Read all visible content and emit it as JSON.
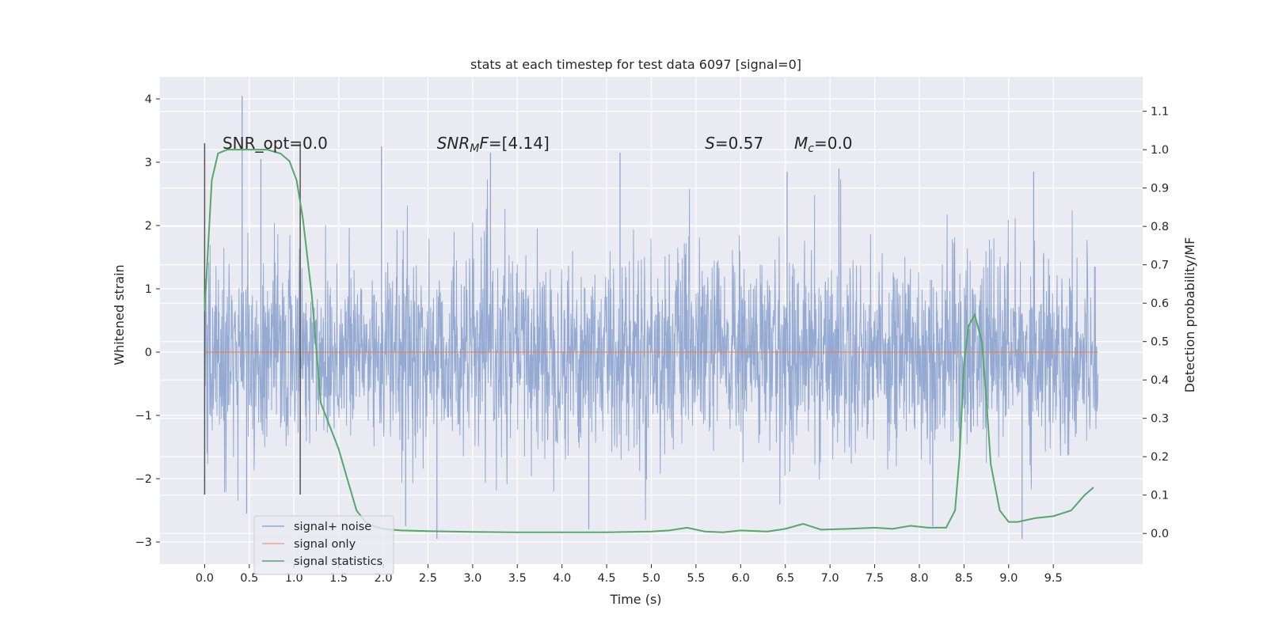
{
  "chart_data": {
    "type": "line",
    "title": "stats at each timestep for test data 6097 [signal=0]",
    "xlabel": "Time (s)",
    "ylabel": "Whitened strain",
    "y2label": "Detection probability/MF",
    "xlim": [
      -0.5,
      10.5
    ],
    "ylim": [
      -3.35,
      4.35
    ],
    "y2lim": [
      -0.08,
      1.19
    ],
    "x_ticks": [
      "0.0",
      "0.5",
      "1.0",
      "1.5",
      "2.0",
      "2.5",
      "3.0",
      "3.5",
      "4.0",
      "4.5",
      "5.0",
      "5.5",
      "6.0",
      "6.5",
      "7.0",
      "7.5",
      "8.0",
      "8.5",
      "9.0",
      "9.5"
    ],
    "y_ticks": [
      "4",
      "3",
      "2",
      "1",
      "0",
      "−1",
      "−2",
      "−3"
    ],
    "y2_ticks": [
      "1.1",
      "1.0",
      "0.9",
      "0.8",
      "0.7",
      "0.6",
      "0.5",
      "0.4",
      "0.3",
      "0.2",
      "0.1",
      "0.0"
    ],
    "grid": true,
    "annotations": [
      {
        "text": "SNR_opt=0.0",
        "x": 0.2,
        "y": 3.3
      },
      {
        "text": "SNR_MF=[4.14]",
        "x": 2.6,
        "y": 3.3
      },
      {
        "text": "S=0.57",
        "x": 5.6,
        "y": 3.3
      },
      {
        "text": "M_c=0.0",
        "x": 6.6,
        "y": 3.3
      }
    ],
    "vlines": [
      {
        "x": 0.0,
        "ymin": -2.25,
        "ymax": 3.3
      },
      {
        "x": 1.07,
        "ymin": -2.25,
        "ymax": 3.3
      }
    ],
    "series": [
      {
        "name": "signal+ noise",
        "axis": "left",
        "color": "#8fa6d0",
        "kind": "noise",
        "t_range": [
          0.0,
          10.0
        ],
        "band_typical": [
          -1.4,
          1.4
        ],
        "envelope_max": 4.05,
        "envelope_min": -2.95,
        "peaks": [
          {
            "x": 0.42,
            "y": 4.05
          },
          {
            "x": 0.63,
            "y": 3.05
          },
          {
            "x": 1.98,
            "y": 3.25
          },
          {
            "x": 3.2,
            "y": 3.15
          },
          {
            "x": 4.65,
            "y": 3.15
          },
          {
            "x": 6.52,
            "y": 2.85
          },
          {
            "x": 7.1,
            "y": 2.9
          },
          {
            "x": 9.28,
            "y": 2.85
          },
          {
            "x": 2.6,
            "y": -2.95
          },
          {
            "x": 9.15,
            "y": -2.95
          },
          {
            "x": 4.3,
            "y": -2.8
          },
          {
            "x": 2.25,
            "y": -2.75
          },
          {
            "x": 0.47,
            "y": -2.55
          },
          {
            "x": 8.15,
            "y": -2.75
          }
        ]
      },
      {
        "name": "signal only",
        "axis": "left",
        "color": "#dd8452",
        "x": [
          0.0,
          10.0
        ],
        "y": [
          0.0,
          0.0
        ]
      },
      {
        "name": "signal statistics",
        "axis": "right",
        "color": "#55a868",
        "x": [
          0.0,
          0.08,
          0.15,
          0.25,
          0.35,
          0.5,
          0.7,
          0.85,
          0.95,
          1.03,
          1.1,
          1.2,
          1.3,
          1.4,
          1.5,
          1.6,
          1.7,
          1.8,
          1.9,
          2.0,
          2.2,
          2.5,
          3.0,
          3.5,
          4.0,
          4.5,
          5.0,
          5.2,
          5.4,
          5.6,
          5.8,
          6.0,
          6.3,
          6.5,
          6.7,
          6.9,
          7.2,
          7.5,
          7.7,
          7.9,
          8.1,
          8.3,
          8.4,
          8.45,
          8.5,
          8.55,
          8.62,
          8.7,
          8.75,
          8.8,
          8.9,
          9.0,
          9.1,
          9.3,
          9.5,
          9.7,
          9.85,
          9.95
        ],
        "y": [
          0.58,
          0.92,
          0.99,
          1.0,
          1.0,
          1.0,
          1.0,
          0.99,
          0.97,
          0.92,
          0.82,
          0.62,
          0.34,
          0.28,
          0.22,
          0.14,
          0.06,
          0.03,
          0.018,
          0.012,
          0.008,
          0.006,
          0.004,
          0.003,
          0.003,
          0.003,
          0.005,
          0.008,
          0.015,
          0.005,
          0.003,
          0.008,
          0.005,
          0.012,
          0.025,
          0.01,
          0.012,
          0.015,
          0.012,
          0.02,
          0.015,
          0.015,
          0.06,
          0.2,
          0.44,
          0.54,
          0.57,
          0.5,
          0.35,
          0.18,
          0.06,
          0.03,
          0.03,
          0.04,
          0.045,
          0.06,
          0.1,
          0.12
        ]
      }
    ],
    "legend": {
      "position": "lower-left",
      "entries": [
        "signal+ noise",
        "signal only",
        "signal statistics"
      ]
    }
  }
}
